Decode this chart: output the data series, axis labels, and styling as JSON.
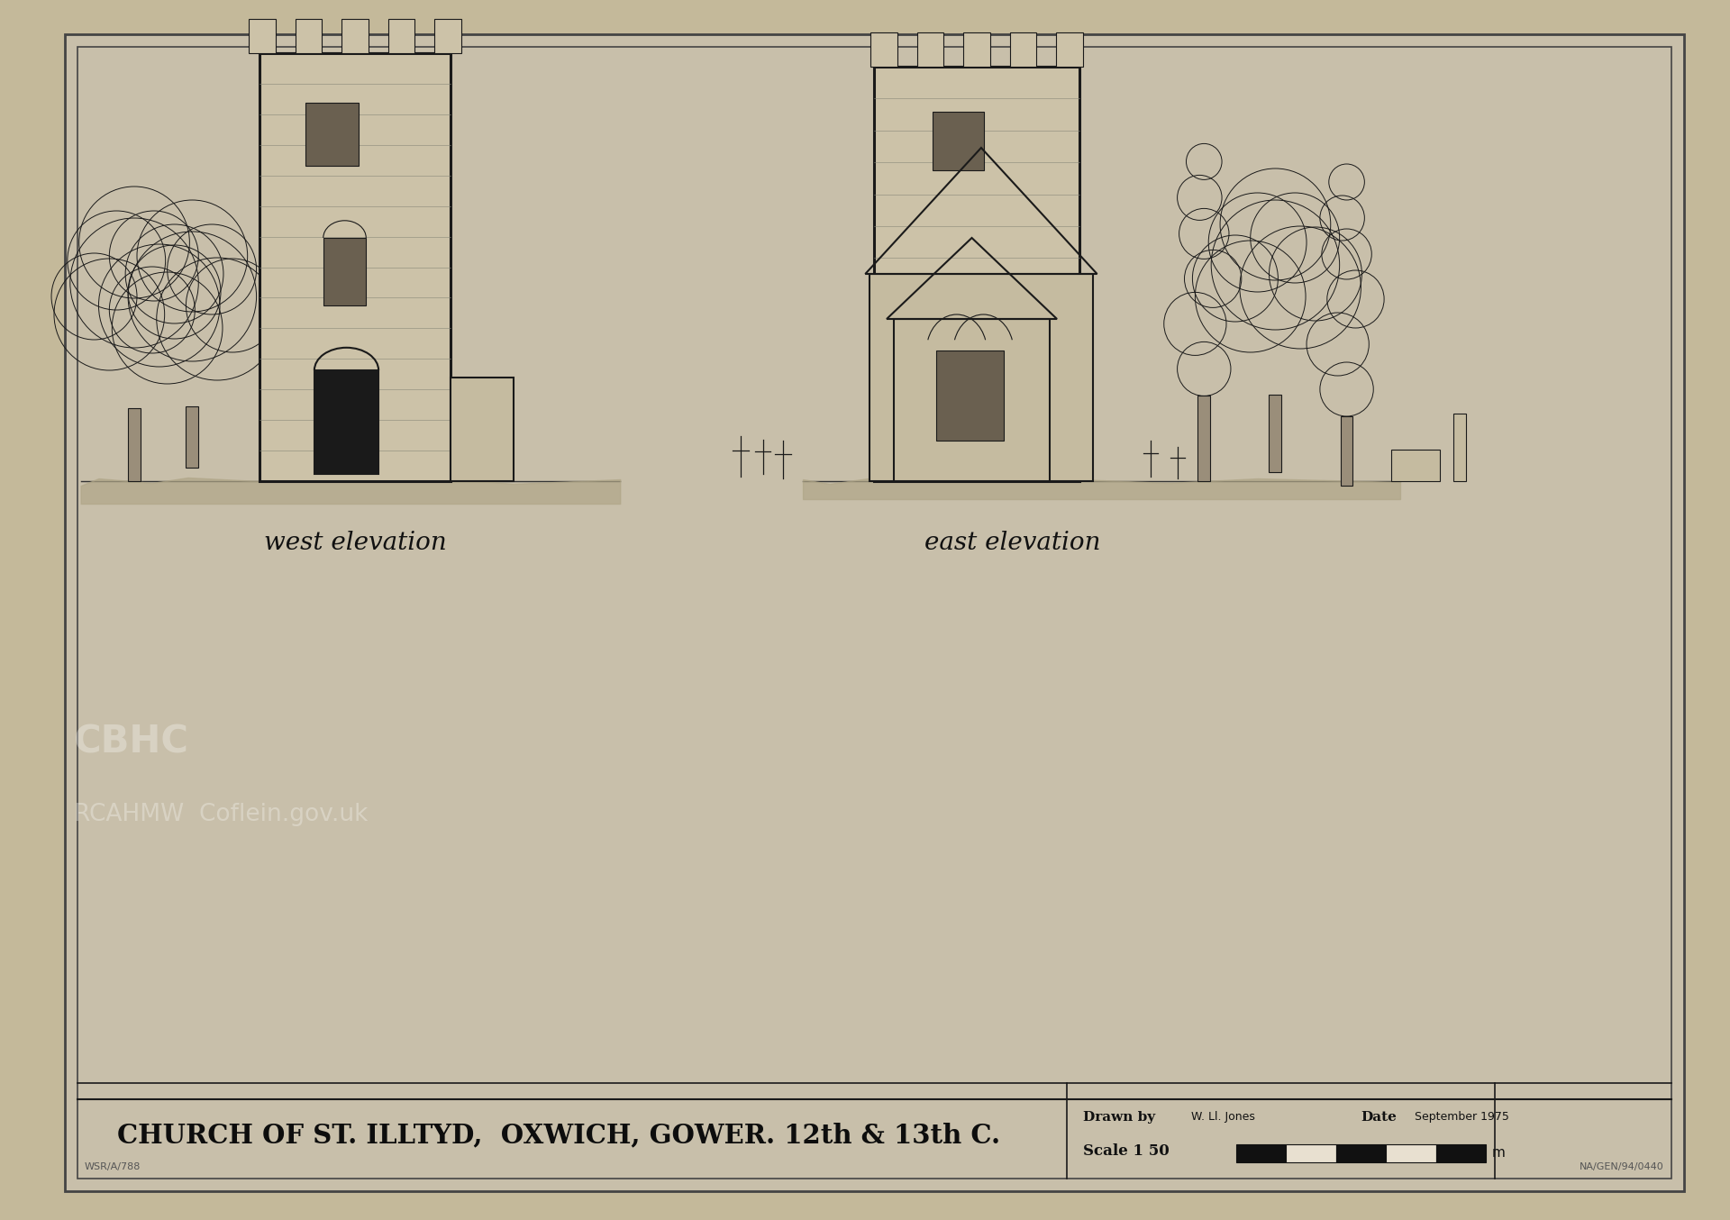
{
  "bg_color": "#c4b99a",
  "paper_color": "#c8bfaa",
  "border_color": "#2a2a2a",
  "drawing_color": "#1a1a1a",
  "title_text": "CHURCH OF ST. ILLTYD,  OXWICH, GOWER. 12th & 13th C.",
  "drawn_by_label": "Drawn by",
  "drawn_by_name": "W. Ll. Jones",
  "date_label": "Date",
  "date_value": "September 1975",
  "scale_text": "Scale 1 50",
  "west_label": "west elevation",
  "east_label": "east elevation",
  "ref_bottom_left": "WSR/A/788",
  "ref_bottom_right": "NA/GEN/94/0440",
  "watermark_cbhc": "CBHC",
  "watermark_rcahmw": "RCAHMW  Coflein.gov.uk"
}
